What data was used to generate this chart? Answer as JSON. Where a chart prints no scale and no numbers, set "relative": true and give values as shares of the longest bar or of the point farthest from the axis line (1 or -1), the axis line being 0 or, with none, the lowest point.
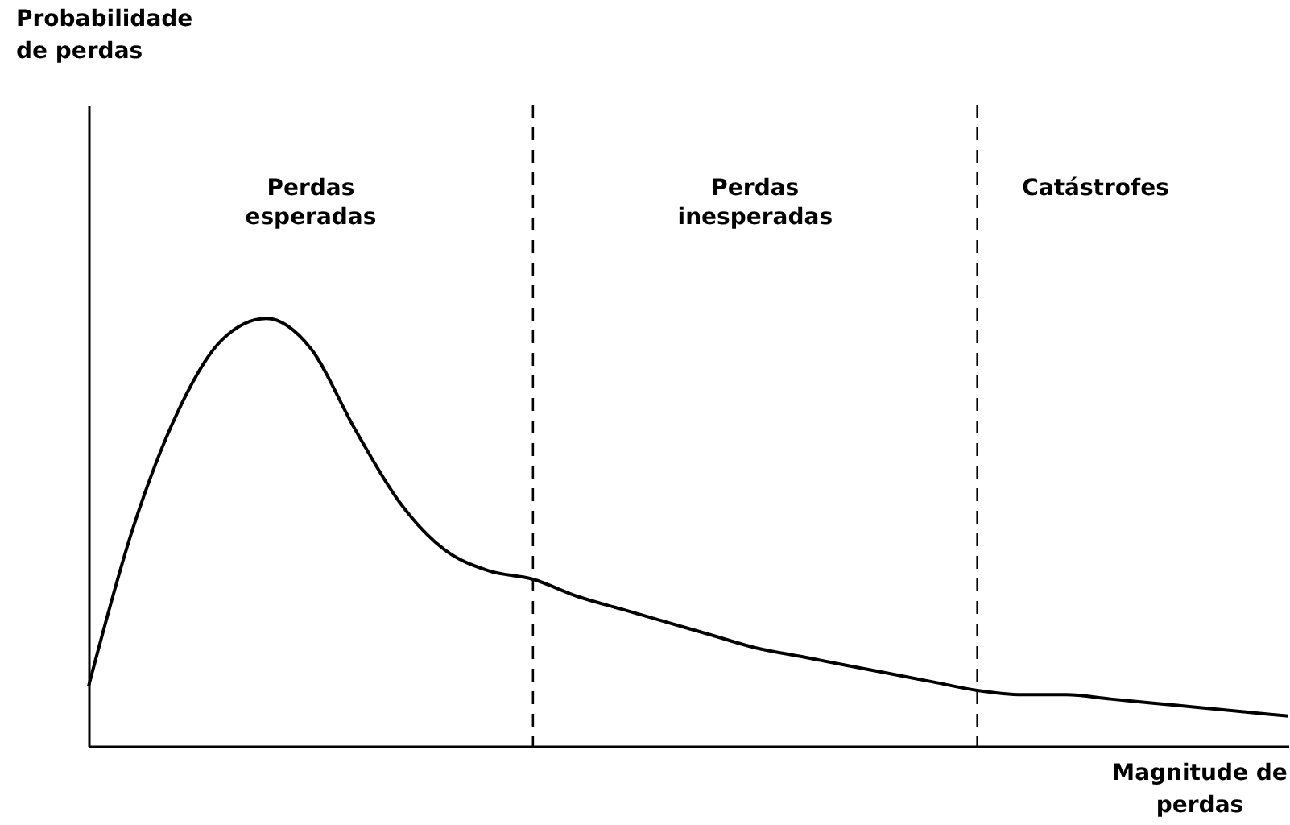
{
  "chart_data": {
    "type": "line",
    "relative": true,
    "xlabel": "Magnitude de perdas",
    "tick_labels": false,
    "grid": false,
    "categories": [
      null,
      null,
      null,
      null,
      null,
      null,
      null,
      null,
      null,
      null,
      null,
      null,
      null,
      null,
      null,
      null,
      null,
      null,
      null,
      null,
      null,
      null,
      null,
      null,
      null,
      null,
      null,
      null
    ],
    "series": [
      {
        "color": "#000000",
        "values": [
          0.14,
          0.51,
          0.78,
          0.95,
          1.0,
          0.93,
          0.74,
          0.57,
          0.46,
          0.41,
          0.39,
          0.35,
          0.32,
          0.29,
          0.26,
          0.23,
          0.21,
          0.19,
          0.17,
          0.15,
          0.13,
          0.12,
          0.12,
          0.11,
          0.1,
          0.09,
          0.08,
          0.07
        ]
      }
    ],
    "annotations": [
      "Probabilidade de perdas",
      "Perdas esperadas",
      "Perdas inesperadas",
      "Catástrofes"
    ]
  }
}
